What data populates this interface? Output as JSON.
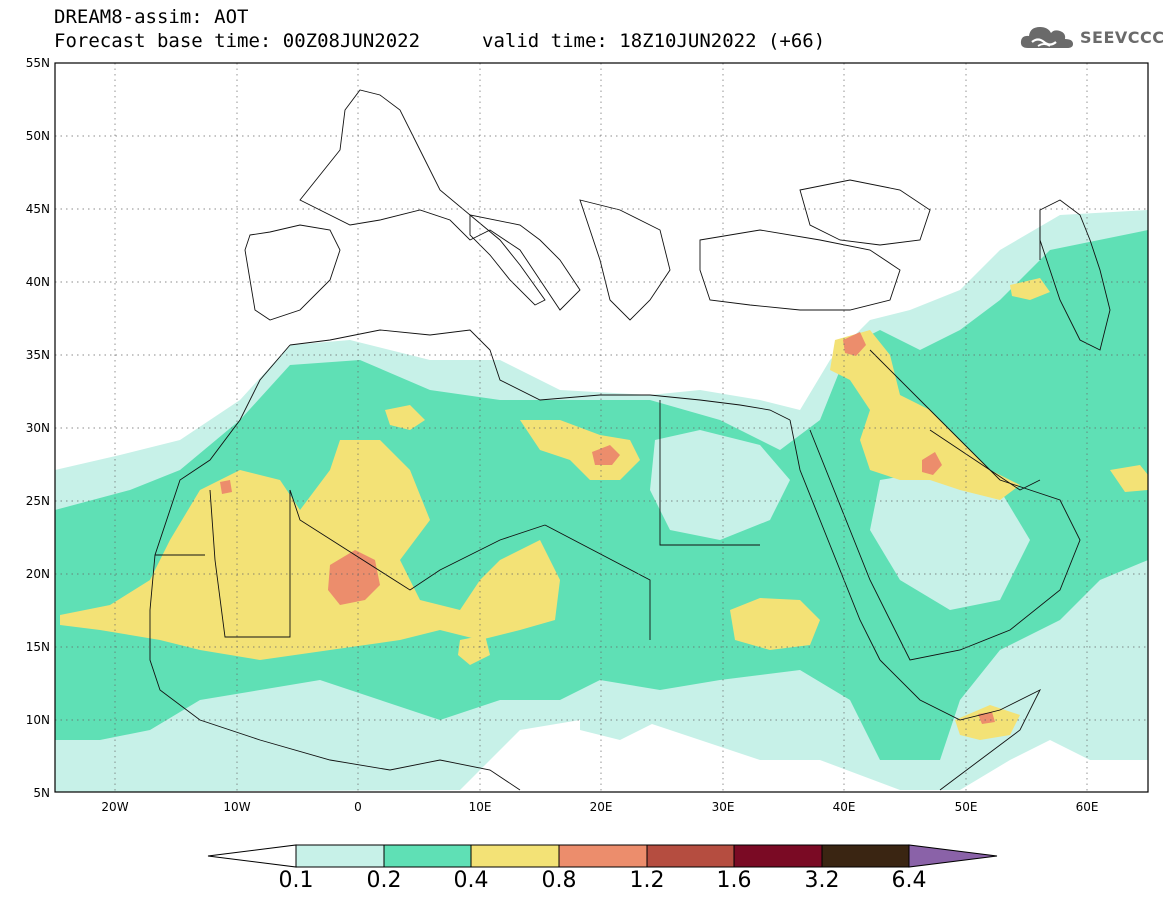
{
  "header": {
    "line1": "DREAM8-assim: AOT",
    "line2": "Forecast base time: 00Z08JUN2022",
    "line3": "valid time: 18Z10JUN2022 (+66)"
  },
  "logo": {
    "text": "SEEVCCC",
    "icon": "cloud-icon"
  },
  "map": {
    "lon_range": [
      -25,
      65
    ],
    "lat_range": [
      5,
      55
    ],
    "lat_ticks": [
      "55N",
      "50N",
      "45N",
      "40N",
      "35N",
      "30N",
      "25N",
      "20N",
      "15N",
      "10N",
      "5N"
    ],
    "lon_ticks": [
      "20W",
      "10W",
      "0",
      "10E",
      "20E",
      "30E",
      "40E",
      "50E",
      "60E"
    ],
    "grid": "dotted"
  },
  "colorbar": {
    "labels": [
      "0.1",
      "0.2",
      "0.4",
      "0.8",
      "1.2",
      "1.6",
      "3.2",
      "6.4"
    ],
    "colors": [
      "#c7f1e8",
      "#5fe0b5",
      "#f3e276",
      "#ec8d6c",
      "#b54d40",
      "#7a0a24",
      "#3a2512",
      "#8a62a8"
    ],
    "extend_low_color": "#ffffff"
  }
}
